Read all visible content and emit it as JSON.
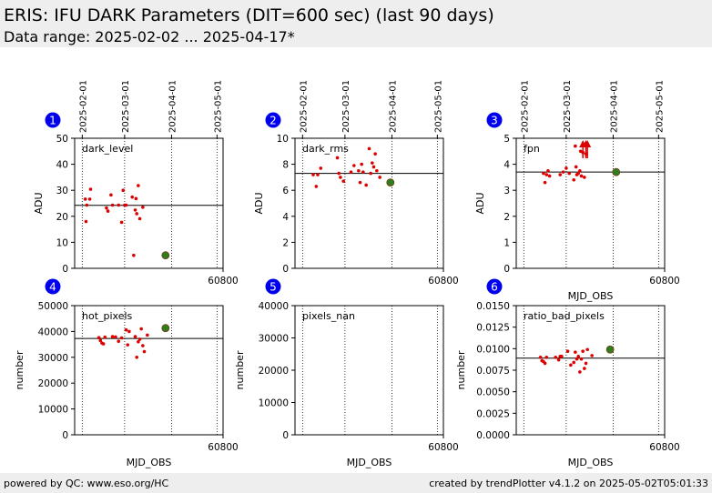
{
  "header": {
    "title": "ERIS: IFU DARK Parameters (DIT=600 sec) (last 90 days)",
    "subtitle": "Data range: 2025-02-02 ... 2025-04-17*"
  },
  "footer": {
    "left": "powered by QC: www.eso.org/HC",
    "right": "created by trendPlotter v4.1.2 on 2025-05-02T05:01:33"
  },
  "colors": {
    "points": "#dd0000",
    "latest": "#2e7d1e",
    "badge": "#0000ee",
    "header_bg": "#eeeeee"
  },
  "date_ticks": [
    "2025-02-01",
    "2025-03-01",
    "2025-04-01",
    "2025-05-01"
  ],
  "date_tick_mjd": [
    60707,
    60735,
    60766,
    60796
  ],
  "x_tick_label": "60800",
  "x_tick_value": 60800,
  "xlim": [
    60702,
    60800
  ],
  "chart_data": [
    {
      "type": "scatter",
      "index": "1",
      "label": "dark_level",
      "ylabel": "ADU",
      "xlabel": "",
      "ylim": [
        0,
        50
      ],
      "yticks": [
        "0",
        "10",
        "20",
        "30",
        "40",
        "50"
      ],
      "ytick_values": [
        0,
        10,
        20,
        30,
        40,
        50
      ],
      "reference": 24.2,
      "x": [
        60709,
        60709.5,
        60710,
        60712,
        60712.5,
        60723,
        60724,
        60726,
        60727,
        60731,
        60733,
        60734,
        60735,
        60736,
        60740,
        60741,
        60742,
        60742.5,
        60743,
        60744,
        60745,
        60747
      ],
      "y": [
        26.6,
        18,
        24.3,
        26.6,
        30.4,
        23.2,
        22,
        28.2,
        24.3,
        24.3,
        17.7,
        30,
        24.3,
        24.3,
        27.4,
        5,
        22.4,
        26.8,
        21,
        31.8,
        19.1,
        23.5
      ],
      "latest": {
        "x": 60762,
        "y": 5
      }
    },
    {
      "type": "scatter",
      "index": "2",
      "label": "dark_rms",
      "ylabel": "ADU",
      "xlabel": "",
      "ylim": [
        0,
        10
      ],
      "yticks": [
        "0",
        "2",
        "4",
        "6",
        "8",
        "10"
      ],
      "ytick_values": [
        0,
        2,
        4,
        6,
        8,
        10
      ],
      "reference": 7.3,
      "x": [
        60714,
        60716,
        60717,
        60719,
        60730,
        60731,
        60732,
        60734,
        60739,
        60741,
        60744,
        60745,
        60746,
        60747,
        60749,
        60751,
        60752,
        60753,
        60754,
        60755,
        60756,
        60758
      ],
      "y": [
        7.2,
        6.3,
        7.2,
        7.7,
        8.5,
        7.3,
        7,
        6.7,
        7.4,
        7.9,
        7.5,
        6.6,
        8,
        7.4,
        6.4,
        9.2,
        7.3,
        8.1,
        7.8,
        8.8,
        7.5,
        7
      ],
      "latest": {
        "x": 60765,
        "y": 6.6
      }
    },
    {
      "type": "scatter",
      "index": "3",
      "label": "fpn",
      "ylabel": "ADU",
      "xlabel": "MJD_OBS",
      "ylim": [
        0,
        5
      ],
      "yticks": [
        "0",
        "1",
        "2",
        "3",
        "4",
        "5"
      ],
      "ytick_values": [
        0,
        1,
        2,
        3,
        4,
        5
      ],
      "reference": 3.7,
      "x": [
        60720,
        60721,
        60722,
        60723,
        60724,
        60731,
        60733,
        60735,
        60737,
        60740,
        60741,
        60741.5,
        60742,
        60743,
        60744,
        60744.5,
        60745,
        60746,
        60747,
        60748
      ],
      "y": [
        3.65,
        3.3,
        3.6,
        3.75,
        3.55,
        3.6,
        3.7,
        3.85,
        3.65,
        3.4,
        4.7,
        3.9,
        3.6,
        3.65,
        3.75,
        4.5,
        3.55,
        4.45,
        3.5,
        4.4
      ],
      "above": [
        60746,
        60748,
        60749
      ],
      "latest": {
        "x": 60768,
        "y": 3.7
      }
    },
    {
      "type": "scatter",
      "index": "4",
      "label": "hot_pixels",
      "ylabel": "number",
      "xlabel": "MJD_OBS",
      "ylim": [
        0,
        50000
      ],
      "yticks": [
        "0",
        "10000",
        "20000",
        "30000",
        "40000",
        "50000"
      ],
      "ytick_values": [
        0,
        10000,
        20000,
        30000,
        40000,
        50000
      ],
      "reference": 37300,
      "x": [
        60718,
        60719,
        60720,
        60721,
        60722,
        60727,
        60729,
        60731,
        60733,
        60736,
        60737,
        60738,
        60742,
        60743,
        60744,
        60745,
        60746,
        60747,
        60748,
        60750
      ],
      "y": [
        37600,
        36500,
        35500,
        35200,
        37800,
        38000,
        37900,
        36200,
        37500,
        40600,
        34800,
        40000,
        38000,
        30000,
        36000,
        37000,
        41000,
        34500,
        32200,
        38600
      ],
      "latest": {
        "x": 60762,
        "y": 41300
      }
    },
    {
      "type": "scatter",
      "index": "5",
      "label": "pixels_nan",
      "ylabel": "number",
      "xlabel": "MJD_OBS",
      "ylim": [
        0,
        40000
      ],
      "yticks": [
        "0",
        "10000",
        "20000",
        "30000",
        "40000"
      ],
      "ytick_values": [
        0,
        10000,
        20000,
        30000,
        40000
      ],
      "reference": null,
      "x": [],
      "y": [],
      "latest": null
    },
    {
      "type": "scatter",
      "index": "6",
      "label": "ratio_bad_pixels",
      "ylabel": "number",
      "xlabel": "MJD_OBS",
      "ylim": [
        0,
        0.015
      ],
      "yticks": [
        "0.0000",
        "0.0025",
        "0.0050",
        "0.0075",
        "0.0100",
        "0.0125",
        "0.0150"
      ],
      "ytick_values": [
        0,
        0.0025,
        0.005,
        0.0075,
        0.01,
        0.0125,
        0.015
      ],
      "reference": 0.0089,
      "x": [
        60718,
        60719,
        60720,
        60721,
        60722,
        60728,
        60730,
        60731,
        60732,
        60736,
        60738,
        60740,
        60741,
        60742,
        60743,
        60744,
        60745,
        60746,
        60747,
        60748,
        60749,
        60752
      ],
      "y": [
        0.009,
        0.0086,
        0.0085,
        0.0083,
        0.009,
        0.009,
        0.0087,
        0.0091,
        0.0091,
        0.0097,
        0.0081,
        0.0084,
        0.0096,
        0.0088,
        0.0091,
        0.0073,
        0.0088,
        0.0097,
        0.0077,
        0.0083,
        0.0099,
        0.0092
      ],
      "latest": {
        "x": 60764,
        "y": 0.0099
      }
    }
  ]
}
